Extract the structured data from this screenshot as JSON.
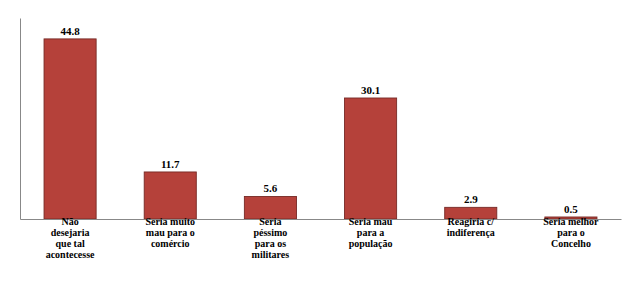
{
  "chart_data": {
    "type": "bar",
    "categories": [
      "Não\ndesejaria\nque tal\nacontecesse",
      "Seria muito\nmau para o\ncomércio",
      "Seria\npéssimo\npara os\nmilitares",
      "Seria mau\npara a\npopulação",
      "Reagiria c/\nindiferença",
      "Seria melhor\npara o\nConcelho"
    ],
    "values": [
      44.8,
      11.7,
      5.6,
      30.1,
      2.9,
      0.5
    ],
    "color": "#b5413a",
    "ylim": [
      0,
      50
    ],
    "data_labels": true,
    "tick_labels": "x"
  }
}
